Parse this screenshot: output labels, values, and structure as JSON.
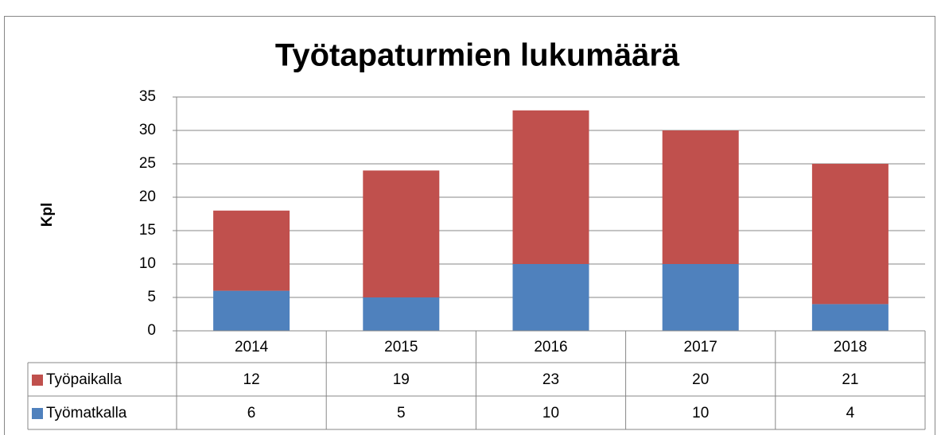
{
  "chart_data": {
    "type": "stacked_bar",
    "title": "Työtapaturmien lukumäärä",
    "y_label": "Kpl",
    "categories": [
      "2014",
      "2015",
      "2016",
      "2017",
      "2018"
    ],
    "series": [
      {
        "name": "Työpaikalla",
        "color": "#c0504d",
        "values": [
          12,
          19,
          23,
          20,
          21
        ]
      },
      {
        "name": "Työmatkalla",
        "color": "#4f81bd",
        "values": [
          6,
          5,
          10,
          10,
          4
        ]
      }
    ],
    "ylim": [
      0,
      35
    ],
    "yticks": [
      0,
      5,
      10,
      15,
      20,
      25,
      30,
      35
    ],
    "grid": true,
    "data_table": true
  }
}
